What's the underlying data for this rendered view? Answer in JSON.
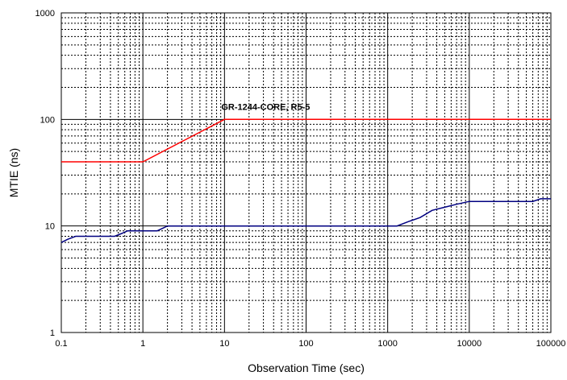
{
  "chart_data": {
    "type": "line",
    "xscale": "log",
    "yscale": "log",
    "xlim": [
      0.1,
      100000
    ],
    "ylim": [
      1,
      1000
    ],
    "xlabel": "Observation Time (sec)",
    "ylabel": "MTIE (ns)",
    "x_ticks": [
      "0.1",
      "1",
      "10",
      "100",
      "1000",
      "10000",
      "100000"
    ],
    "y_ticks": [
      "1",
      "10",
      "100",
      "1000"
    ],
    "grid": true,
    "annotation": "GR-1244-CORE, R5-5",
    "series": [
      {
        "name": "GR-1244-CORE, R5-5",
        "color": "#ff0000",
        "points": [
          [
            0.1,
            40
          ],
          [
            1,
            40
          ],
          [
            10,
            100
          ],
          [
            100000,
            100
          ]
        ]
      },
      {
        "color": "#000080",
        "points": [
          [
            0.1,
            7
          ],
          [
            0.12,
            7.5
          ],
          [
            0.15,
            8
          ],
          [
            0.2,
            8
          ],
          [
            0.3,
            8
          ],
          [
            0.45,
            8
          ],
          [
            0.55,
            8.5
          ],
          [
            0.65,
            9
          ],
          [
            1,
            9
          ],
          [
            1.5,
            9
          ],
          [
            2,
            10
          ],
          [
            5,
            10
          ],
          [
            100,
            10
          ],
          [
            1000,
            10
          ],
          [
            1300,
            10
          ],
          [
            1800,
            11
          ],
          [
            2500,
            12
          ],
          [
            3500,
            14
          ],
          [
            5000,
            15
          ],
          [
            7000,
            16
          ],
          [
            10000,
            17
          ],
          [
            30000,
            17
          ],
          [
            60000,
            17
          ],
          [
            75000,
            18
          ],
          [
            100000,
            18
          ]
        ]
      }
    ]
  }
}
